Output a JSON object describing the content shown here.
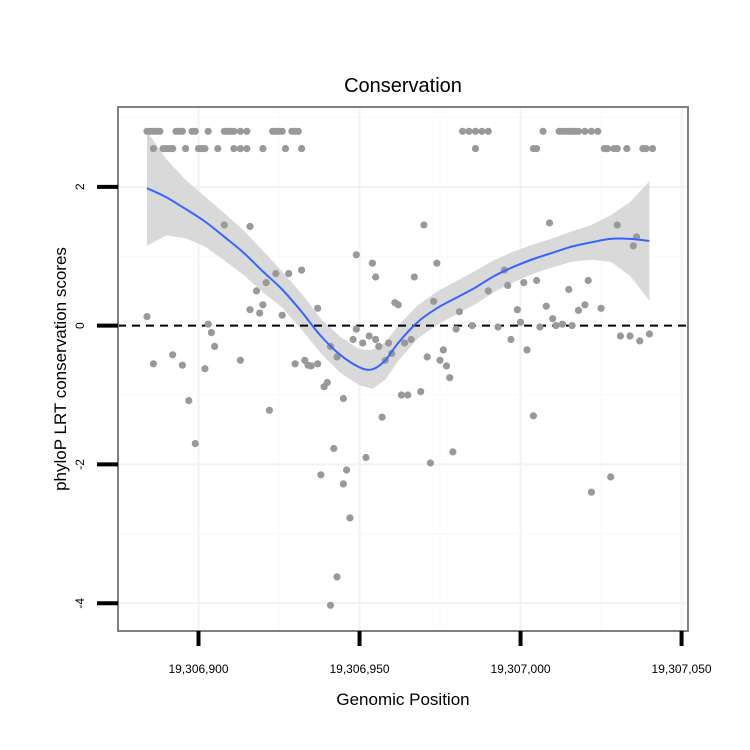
{
  "chart_data": {
    "type": "scatter",
    "title": "Conservation",
    "xlabel": "Genomic Position",
    "ylabel": "phyloP LRT conservation scores",
    "xlim": [
      19306875,
      19307052
    ],
    "ylim": [
      -4.4,
      3.15
    ],
    "x_ticks": [
      19306900,
      19306950,
      19307000,
      19307050
    ],
    "x_tick_labels": [
      "19,306,900",
      "19,306,950",
      "19,307,000",
      "19,307,050"
    ],
    "y_ticks": [
      -4,
      -2,
      0,
      2
    ],
    "y_tick_labels": [
      "-4",
      "-2",
      "0",
      "2"
    ],
    "reference_line": {
      "y": 0,
      "style": "dashed"
    },
    "colors": {
      "points": "#999999",
      "smooth": "#3366ff",
      "ribbon": "#d9d9d9",
      "panel_border": "#808080"
    },
    "points": [
      [
        19306884,
        2.8
      ],
      [
        19306885,
        2.8
      ],
      [
        19306886,
        2.8
      ],
      [
        19306887,
        2.8
      ],
      [
        19306888,
        2.8
      ],
      [
        19306886,
        2.55
      ],
      [
        19306889,
        2.55
      ],
      [
        19306890,
        2.55
      ],
      [
        19306891,
        2.55
      ],
      [
        19306893,
        2.8
      ],
      [
        19306894,
        2.8
      ],
      [
        19306895,
        2.8
      ],
      [
        19306898,
        2.8
      ],
      [
        19306899,
        2.8
      ],
      [
        19306903,
        2.8
      ],
      [
        19306892,
        2.55
      ],
      [
        19306896,
        2.55
      ],
      [
        19306900,
        2.55
      ],
      [
        19306901,
        2.55
      ],
      [
        19306902,
        2.55
      ],
      [
        19306908,
        2.8
      ],
      [
        19306909,
        2.8
      ],
      [
        19306910,
        2.8
      ],
      [
        19306911,
        2.8
      ],
      [
        19306913,
        2.8
      ],
      [
        19306915,
        2.8
      ],
      [
        19306906,
        2.55
      ],
      [
        19306911,
        2.55
      ],
      [
        19306913,
        2.55
      ],
      [
        19306915,
        2.55
      ],
      [
        19306920,
        2.55
      ],
      [
        19306923,
        2.8
      ],
      [
        19306924,
        2.8
      ],
      [
        19306925,
        2.8
      ],
      [
        19306926,
        2.8
      ],
      [
        19306929,
        2.8
      ],
      [
        19306930,
        2.8
      ],
      [
        19306931,
        2.8
      ],
      [
        19306927,
        2.55
      ],
      [
        19306932,
        2.55
      ],
      [
        19306884,
        0.13
      ],
      [
        19306886,
        -0.55
      ],
      [
        19306892,
        -0.42
      ],
      [
        19306895,
        -0.57
      ],
      [
        19306897,
        -1.08
      ],
      [
        19306899,
        -1.7
      ],
      [
        19306902,
        -0.62
      ],
      [
        19306903,
        0.02
      ],
      [
        19306904,
        -0.1
      ],
      [
        19306905,
        -0.3
      ],
      [
        19306908,
        1.45
      ],
      [
        19306913,
        -0.5
      ],
      [
        19306916,
        1.43
      ],
      [
        19306916,
        0.23
      ],
      [
        19306918,
        0.5
      ],
      [
        19306919,
        0.18
      ],
      [
        19306920,
        0.3
      ],
      [
        19306921,
        0.62
      ],
      [
        19306922,
        -1.22
      ],
      [
        19306924,
        0.75
      ],
      [
        19306926,
        0.15
      ],
      [
        19306928,
        0.75
      ],
      [
        19306930,
        -0.55
      ],
      [
        19306932,
        0.8
      ],
      [
        19306933,
        -0.5
      ],
      [
        19306934,
        -0.57
      ],
      [
        19306935,
        -0.58
      ],
      [
        19306937,
        0.25
      ],
      [
        19306937,
        -0.55
      ],
      [
        19306938,
        -2.15
      ],
      [
        19306939,
        -0.88
      ],
      [
        19306940,
        -0.82
      ],
      [
        19306941,
        -0.3
      ],
      [
        19306942,
        -1.77
      ],
      [
        19306943,
        -3.62
      ],
      [
        19306941,
        -4.03
      ],
      [
        19306943,
        -0.45
      ],
      [
        19306945,
        -1.05
      ],
      [
        19306945,
        -2.28
      ],
      [
        19306946,
        -2.08
      ],
      [
        19306947,
        -2.77
      ],
      [
        19306948,
        -0.2
      ],
      [
        19306949,
        1.02
      ],
      [
        19306949,
        -0.05
      ],
      [
        19306951,
        -0.25
      ],
      [
        19306952,
        -1.9
      ],
      [
        19306953,
        -0.15
      ],
      [
        19306954,
        0.9
      ],
      [
        19306955,
        0.7
      ],
      [
        19306955,
        -0.2
      ],
      [
        19306956,
        -0.3
      ],
      [
        19306957,
        -1.32
      ],
      [
        19306958,
        -0.5
      ],
      [
        19306959,
        -0.25
      ],
      [
        19306960,
        -0.4
      ],
      [
        19306961,
        0.33
      ],
      [
        19306962,
        0.3
      ],
      [
        19306963,
        -1.0
      ],
      [
        19306964,
        -0.25
      ],
      [
        19306965,
        -1.0
      ],
      [
        19306966,
        -0.2
      ],
      [
        19306967,
        0.7
      ],
      [
        19306969,
        -0.95
      ],
      [
        19306970,
        1.45
      ],
      [
        19306971,
        -0.45
      ],
      [
        19306972,
        -1.98
      ],
      [
        19306973,
        0.35
      ],
      [
        19306974,
        0.9
      ],
      [
        19306975,
        -0.5
      ],
      [
        19306976,
        -0.35
      ],
      [
        19306977,
        -0.58
      ],
      [
        19306978,
        -0.75
      ],
      [
        19306979,
        -1.82
      ],
      [
        19306980,
        -0.05
      ],
      [
        19306981,
        0.2
      ],
      [
        19306982,
        2.8
      ],
      [
        19306984,
        2.8
      ],
      [
        19306986,
        2.8
      ],
      [
        19306988,
        2.8
      ],
      [
        19306990,
        2.8
      ],
      [
        19306986,
        2.55
      ],
      [
        19306985,
        0.0
      ],
      [
        19306990,
        0.5
      ],
      [
        19306993,
        -0.02
      ],
      [
        19306995,
        0.8
      ],
      [
        19306996,
        0.58
      ],
      [
        19306997,
        -0.2
      ],
      [
        19306999,
        0.23
      ],
      [
        19307000,
        0.05
      ],
      [
        19307001,
        0.62
      ],
      [
        19307002,
        -0.35
      ],
      [
        19307004,
        2.55
      ],
      [
        19307005,
        2.55
      ],
      [
        19307004,
        -1.3
      ],
      [
        19307005,
        0.65
      ],
      [
        19307006,
        -0.02
      ],
      [
        19307007,
        2.8
      ],
      [
        19307008,
        0.28
      ],
      [
        19307009,
        1.48
      ],
      [
        19307010,
        0.1
      ],
      [
        19307011,
        0.0
      ],
      [
        19307012,
        2.8
      ],
      [
        19307013,
        2.8
      ],
      [
        19307014,
        2.8
      ],
      [
        19307015,
        2.8
      ],
      [
        19307016,
        2.8
      ],
      [
        19307017,
        2.8
      ],
      [
        19307018,
        2.8
      ],
      [
        19307020,
        2.8
      ],
      [
        19307022,
        2.8
      ],
      [
        19307024,
        2.8
      ],
      [
        19307013,
        0.02
      ],
      [
        19307015,
        0.52
      ],
      [
        19307016,
        0.0
      ],
      [
        19307018,
        0.22
      ],
      [
        19307020,
        0.3
      ],
      [
        19307021,
        0.65
      ],
      [
        19307022,
        -2.4
      ],
      [
        19307025,
        0.25
      ],
      [
        19307026,
        2.55
      ],
      [
        19307027,
        2.55
      ],
      [
        19307028,
        -2.18
      ],
      [
        19307029,
        2.55
      ],
      [
        19307030,
        1.45
      ],
      [
        19307030,
        2.55
      ],
      [
        19307031,
        -0.15
      ],
      [
        19307033,
        2.55
      ],
      [
        19307034,
        -0.15
      ],
      [
        19307035,
        1.15
      ],
      [
        19307036,
        1.28
      ],
      [
        19307037,
        -0.22
      ],
      [
        19307038,
        2.55
      ],
      [
        19307039,
        2.55
      ],
      [
        19307040,
        -0.12
      ],
      [
        19307041,
        2.55
      ]
    ],
    "smooth_x": [
      19306884,
      19306890,
      19306896,
      19306902,
      19306908,
      19306914,
      19306920,
      19306926,
      19306932,
      19306938,
      19306944,
      19306950,
      19306954,
      19306958,
      19306962,
      19306968,
      19306974,
      19306980,
      19306986,
      19306992,
      19306998,
      19307004,
      19307010,
      19307016,
      19307022,
      19307028,
      19307034,
      19307040
    ],
    "smooth_y": [
      1.98,
      1.85,
      1.68,
      1.5,
      1.28,
      1.05,
      0.78,
      0.52,
      0.2,
      -0.15,
      -0.42,
      -0.6,
      -0.63,
      -0.5,
      -0.25,
      0.05,
      0.25,
      0.4,
      0.55,
      0.72,
      0.85,
      0.96,
      1.05,
      1.14,
      1.2,
      1.25,
      1.25,
      1.22
    ],
    "ribbon_upper": [
      2.8,
      2.4,
      2.1,
      1.86,
      1.62,
      1.37,
      1.08,
      0.78,
      0.46,
      0.1,
      -0.16,
      -0.34,
      -0.35,
      -0.24,
      -0.0,
      0.29,
      0.49,
      0.64,
      0.79,
      0.95,
      1.07,
      1.17,
      1.26,
      1.36,
      1.45,
      1.59,
      1.78,
      2.08
    ],
    "ribbon_lower": [
      1.15,
      1.3,
      1.26,
      1.14,
      0.94,
      0.73,
      0.48,
      0.26,
      -0.06,
      -0.4,
      -0.68,
      -0.86,
      -0.91,
      -0.78,
      -0.51,
      -0.19,
      0.01,
      0.16,
      0.31,
      0.49,
      0.63,
      0.75,
      0.84,
      0.92,
      0.95,
      0.92,
      0.72,
      0.36
    ]
  }
}
